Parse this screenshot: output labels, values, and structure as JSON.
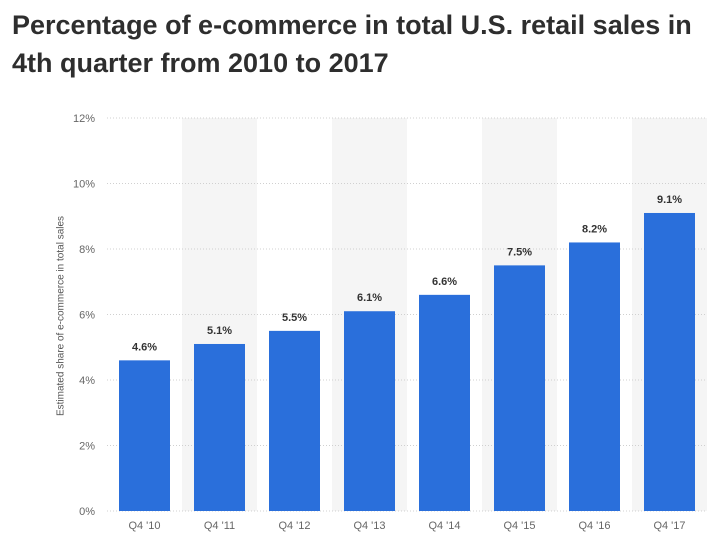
{
  "title": "Percentage of e-commerce in total U.S. retail sales in 4th quarter from 2010 to 2017",
  "colors": {
    "bar": "#2a6fdb",
    "band": "#f5f5f5",
    "grid": "#d0d0d0",
    "title": "#2e2e2e"
  },
  "chart_data": {
    "type": "bar",
    "title": "Percentage of e-commerce in total U.S. retail sales in 4th quarter from 2010 to 2017",
    "xlabel": "",
    "ylabel": "Estimated share of e-commerce in total sales",
    "categories": [
      "Q4 '10",
      "Q4 '11",
      "Q4 '12",
      "Q4 '13",
      "Q4 '14",
      "Q4 '15",
      "Q4 '16",
      "Q4 '17"
    ],
    "values": [
      4.6,
      5.1,
      5.5,
      6.1,
      6.6,
      7.5,
      8.2,
      9.1
    ],
    "data_labels": [
      "4.6%",
      "5.1%",
      "5.5%",
      "6.1%",
      "6.6%",
      "7.5%",
      "8.2%",
      "9.1%"
    ],
    "ylim": [
      0,
      12
    ],
    "yticks": [
      0,
      2,
      4,
      6,
      8,
      10,
      12
    ],
    "ytick_labels": [
      "0%",
      "2%",
      "4%",
      "6%",
      "8%",
      "10%",
      "12%"
    ],
    "grid": true,
    "legend": "none"
  }
}
